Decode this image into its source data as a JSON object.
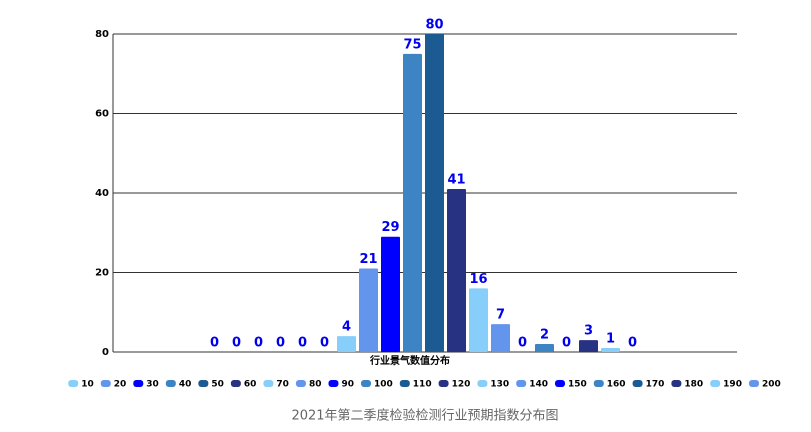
{
  "chart_data": {
    "type": "bar",
    "title": "2021年第二季度检验检测行业预期指数分布图",
    "categories": [
      "行业景气数值分布"
    ],
    "ylim": [
      0,
      80
    ],
    "yticks": [
      0,
      20,
      40,
      60,
      80
    ],
    "grid": true,
    "series": [
      {
        "name": "10",
        "color": "#87cefa",
        "values": [
          0
        ]
      },
      {
        "name": "20",
        "color": "#6495ed",
        "values": [
          0
        ]
      },
      {
        "name": "30",
        "color": "#0000ff",
        "values": [
          0
        ]
      },
      {
        "name": "40",
        "color": "#3c84c4",
        "values": [
          0
        ]
      },
      {
        "name": "50",
        "color": "#1c5a92",
        "values": [
          0
        ]
      },
      {
        "name": "60",
        "color": "#283282",
        "values": [
          0
        ]
      },
      {
        "name": "70",
        "color": "#87cefa",
        "values": [
          4
        ]
      },
      {
        "name": "80",
        "color": "#6495ed",
        "values": [
          21
        ]
      },
      {
        "name": "90",
        "color": "#0000ff",
        "values": [
          29
        ]
      },
      {
        "name": "100",
        "color": "#3c84c4",
        "values": [
          75
        ]
      },
      {
        "name": "110",
        "color": "#1c5a92",
        "values": [
          80
        ]
      },
      {
        "name": "120",
        "color": "#283282",
        "values": [
          41
        ]
      },
      {
        "name": "130",
        "color": "#87cefa",
        "values": [
          16
        ]
      },
      {
        "name": "140",
        "color": "#6495ed",
        "values": [
          7
        ]
      },
      {
        "name": "150",
        "color": "#0000ff",
        "values": [
          0
        ]
      },
      {
        "name": "160",
        "color": "#3c84c4",
        "values": [
          2
        ]
      },
      {
        "name": "170",
        "color": "#1c5a92",
        "values": [
          0
        ]
      },
      {
        "name": "180",
        "color": "#283282",
        "values": [
          3
        ]
      },
      {
        "name": "190",
        "color": "#87cefa",
        "values": [
          1
        ]
      },
      {
        "name": "200",
        "color": "#6495ed",
        "values": [
          0
        ]
      }
    ]
  }
}
